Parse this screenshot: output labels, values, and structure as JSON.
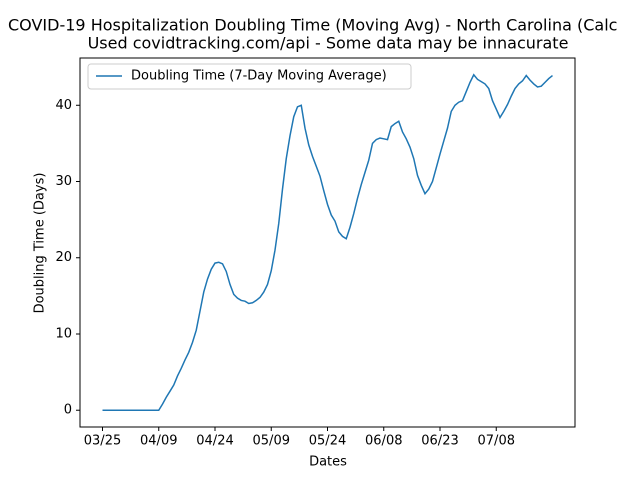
{
  "chart_data": {
    "type": "line",
    "title": "COVID-19 Hospitalization Doubling Time (Moving Avg) - North Carolina (Calc",
    "subtitle": "Used covidtracking.com/api - Some data may be innacurate",
    "x_label": "Dates",
    "y_label": "Doubling Time (Days)",
    "categories": [
      "03/25",
      null,
      null,
      null,
      null,
      null,
      null,
      null,
      null,
      null,
      null,
      null,
      null,
      null,
      null,
      "04/09",
      null,
      null,
      null,
      null,
      null,
      null,
      null,
      null,
      null,
      null,
      null,
      null,
      null,
      null,
      "04/24",
      null,
      null,
      null,
      null,
      null,
      null,
      null,
      null,
      null,
      null,
      null,
      null,
      null,
      null,
      "05/09",
      null,
      null,
      null,
      null,
      null,
      null,
      null,
      null,
      null,
      null,
      null,
      null,
      null,
      null,
      "05/24",
      null,
      null,
      null,
      null,
      null,
      null,
      null,
      null,
      null,
      null,
      null,
      null,
      null,
      null,
      "06/08",
      null,
      null,
      null,
      null,
      null,
      null,
      null,
      null,
      null,
      null,
      null,
      null,
      null,
      null,
      "06/23",
      null,
      null,
      null,
      null,
      null,
      null,
      null,
      null,
      null,
      null,
      null,
      null,
      null,
      null,
      "07/08",
      null,
      null,
      null,
      null,
      null,
      null,
      null,
      null,
      null,
      null,
      null,
      null,
      null,
      null,
      null
    ],
    "series": [
      {
        "name": "Doubling Time (7-Day Moving Average)",
        "color": "#1f77b4",
        "values": [
          0,
          0,
          0,
          0,
          0,
          0,
          0,
          0,
          0,
          0,
          0,
          0,
          0,
          0,
          0,
          0,
          0.8,
          1.7,
          2.5,
          3.3,
          4.5,
          5.5,
          6.6,
          7.6,
          8.9,
          10.5,
          13,
          15.5,
          17.2,
          18.5,
          19.3,
          19.4,
          19.2,
          18.2,
          16.5,
          15.2,
          14.7,
          14.4,
          14.3,
          14.0,
          14.1,
          14.4,
          14.8,
          15.5,
          16.5,
          18.3,
          21,
          24.5,
          29,
          33,
          36,
          38.5,
          39.8,
          40.0,
          37,
          34.8,
          33.3,
          32,
          30.7,
          28.8,
          27,
          25.6,
          24.8,
          23.4,
          22.8,
          22.5,
          24,
          25.8,
          27.8,
          29.6,
          31.2,
          32.8,
          35,
          35.5,
          35.7,
          35.6,
          35.5,
          37.2,
          37.6,
          37.9,
          36.5,
          35.6,
          34.5,
          33,
          30.8,
          29.5,
          28.4,
          29,
          30,
          31.8,
          33.6,
          35.3,
          37,
          39.2,
          40,
          40.4,
          40.6,
          41.8,
          43,
          44,
          43.4,
          43.1,
          42.8,
          42.2,
          40.6,
          39.5,
          38.4,
          39.2,
          40.1,
          41.2,
          42.2,
          42.8,
          43.2,
          43.9,
          43.3,
          42.8,
          42.4,
          42.5,
          43,
          43.5,
          43.9
        ]
      }
    ],
    "ylim": [
      -2.2,
      46.2
    ],
    "yticks": [
      0,
      10,
      20,
      30,
      40
    ],
    "legend": "upper left",
    "grid": false
  }
}
